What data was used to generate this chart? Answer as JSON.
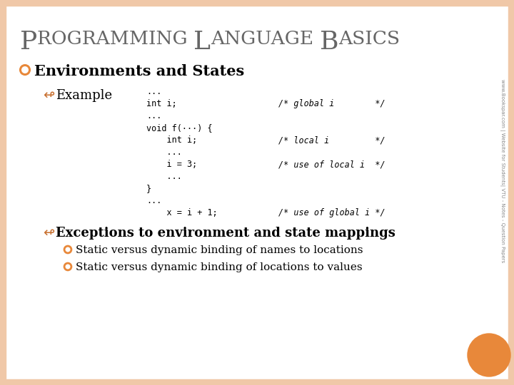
{
  "title_parts": [
    "P",
    "ROGRAMMING ",
    "L",
    "ANGUAGE ",
    "B",
    "ASICS"
  ],
  "title_color": "#666666",
  "bg_color": "#ffffff",
  "border_color": "#f0c8a8",
  "border_width": 8,
  "orange_color": "#e8883a",
  "dark_orange": "#c87030",
  "bullet1_text": "Environments and States",
  "bullet2_text": "Example",
  "code_lines_left": [
    "...",
    "int i;",
    "...",
    "void f(···) {",
    "    int i;",
    "    ...",
    "    i = 3;",
    "    ...",
    "}",
    "...",
    "    x = i + 1;"
  ],
  "code_comments": [
    "",
    "/* global i        */",
    "",
    "",
    "/* local i         */",
    "",
    "/* use of local i  */",
    "",
    "",
    "",
    "/* use of global i */"
  ],
  "sub_bullet_text": "Exceptions to environment and state mappings",
  "sub_items": [
    "Static versus dynamic binding of names to locations",
    "Static versus dynamic binding of locations to values"
  ],
  "sidebar_line1": "www.Bookspar.com | Website for Students|",
  "sidebar_line2": "VTU - Notes - Question Papers"
}
